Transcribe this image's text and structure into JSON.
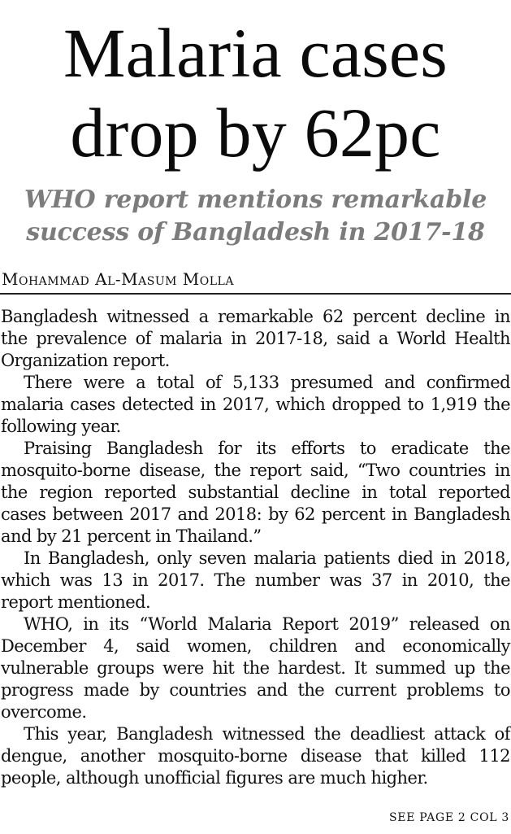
{
  "headline": "Malaria cases drop by 62pc",
  "subheadline": "WHO report mentions remarkable success of Bangladesh in 2017-18",
  "byline": "Mohammad Al-Masum Molla",
  "paragraphs": [
    "Bangladesh witnessed a remarkable 62 percent decline in the prevalence of malaria in 2017-18, said a World Health Organization report.",
    "There were a total of 5,133 presumed and confirmed malaria cases detected in 2017, which dropped to 1,919 the following year.",
    "Praising Bangladesh for its efforts to eradicate the mosquito-borne disease, the report said, “Two countries in the region reported substantial decline in total reported cases between 2017 and 2018: by 62 percent in Bangladesh and by 21 percent in Thailand.”",
    "In Bangladesh, only seven malaria patients died in 2018, which was 13 in 2017. The number was 37 in 2010, the report mentioned.",
    "WHO, in its “World Malaria Report 2019” released on December 4, said women, children and economically vulnerable groups were hit the hardest. It summed up the progress made by countries and the current problems to overcome.",
    "This year, Bangladesh witnessed the deadliest attack of dengue, another mosquito-borne disease that killed 112 people, although unofficial figures are much higher."
  ],
  "continuation": "SEE PAGE 2 COL 3"
}
